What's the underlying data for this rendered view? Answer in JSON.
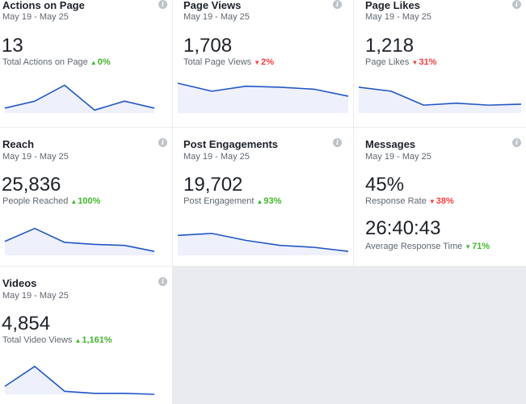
{
  "colors": {
    "line": "#2356c7",
    "fill": "#eef0fb",
    "up": "#42b72a",
    "down": "#fa3e3e"
  },
  "cards": [
    {
      "title": "Actions on Page",
      "date": "May 19 - May 25",
      "value": "13",
      "sub_label": "Total Actions on Page",
      "change": "0%",
      "direction": "up",
      "series": [
        5,
        12,
        28,
        3,
        12,
        5
      ]
    },
    {
      "title": "Page Views",
      "date": "May 19 - May 25",
      "value": "1,708",
      "sub_label": "Total Page Views",
      "change": "2%",
      "direction": "down",
      "series": [
        30,
        22,
        27,
        26,
        24,
        17
      ]
    },
    {
      "title": "Page Likes",
      "date": "May 19 - May 25",
      "value": "1,218",
      "sub_label": "Page Likes",
      "change": "31%",
      "direction": "down",
      "series": [
        26,
        22,
        8,
        10,
        8,
        9
      ]
    },
    {
      "title": "Reach",
      "date": "May 19 - May 25",
      "value": "25,836",
      "sub_label": "People Reached",
      "change": "100%",
      "direction": "up",
      "series": [
        14,
        27,
        13,
        11,
        10,
        4
      ]
    },
    {
      "title": "Post Engagements",
      "date": "May 19 - May 25",
      "value": "19,702",
      "sub_label": "Post Engagement",
      "change": "93%",
      "direction": "up",
      "series": [
        20,
        22,
        15,
        10,
        8,
        4
      ]
    },
    {
      "title": "Messages",
      "date": "May 19 - May 25",
      "value": "45%",
      "sub_label": "Response Rate",
      "change": "38%",
      "direction": "down",
      "value2": "26:40:43",
      "sub_label2": "Average Response Time",
      "change2": "71%",
      "direction2": "down"
    },
    {
      "title": "Videos",
      "date": "May 19 - May 25",
      "value": "4,854",
      "sub_label": "Total Video Views",
      "change": "1,161%",
      "direction": "up",
      "series": [
        8,
        28,
        3,
        1,
        1,
        0
      ]
    }
  ]
}
